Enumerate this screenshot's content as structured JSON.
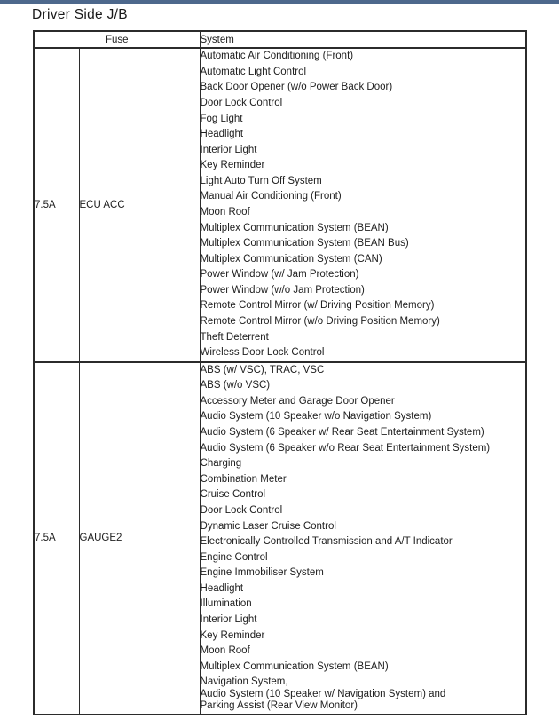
{
  "page": {
    "title": "Driver Side J/B",
    "top_bar_color": "#4d688c"
  },
  "table": {
    "headers": {
      "fuse": "Fuse",
      "system": "System"
    },
    "rows": [
      {
        "amperage": "7.5A",
        "name": "ECU ACC",
        "systems": [
          "Automatic Air Conditioning (Front)",
          "Automatic Light Control",
          "Back Door Opener (w/o Power Back Door)",
          "Door Lock Control",
          "Fog Light",
          "Headlight",
          "Interior Light",
          "Key Reminder",
          "Light Auto Turn Off System",
          "Manual Air Conditioning (Front)",
          "Moon Roof",
          "Multiplex Communication System (BEAN)",
          "Multiplex Communication System (BEAN Bus)",
          "Multiplex Communication System (CAN)",
          "Power Window (w/ Jam Protection)",
          "Power Window (w/o Jam Protection)",
          "Remote Control Mirror (w/ Driving Position Memory)",
          "Remote Control Mirror (w/o Driving Position Memory)",
          "Theft Deterrent",
          "Wireless Door Lock Control"
        ]
      },
      {
        "amperage": "7.5A",
        "name": "GAUGE2",
        "systems": [
          "ABS (w/ VSC), TRAC, VSC",
          "ABS (w/o VSC)",
          "Accessory Meter and Garage Door Opener",
          "Audio System (10 Speaker w/o Navigation System)",
          "Audio System (6 Speaker w/ Rear Seat Entertainment System)",
          "Audio System (6 Speaker w/o Rear Seat Entertainment System)",
          "Charging",
          "Combination Meter",
          "Cruise Control",
          "Door Lock Control",
          "Dynamic Laser Cruise Control",
          "Electronically Controlled Transmission and A/T Indicator",
          "Engine Control",
          "Engine Immobiliser System",
          "Headlight",
          "Illumination",
          "Interior Light",
          "Key Reminder",
          "Moon Roof",
          "Multiplex Communication System (BEAN)",
          "Navigation System,\nAudio System (10 Speaker w/ Navigation System) and\nParking Assist (Rear View Monitor)"
        ]
      }
    ]
  }
}
